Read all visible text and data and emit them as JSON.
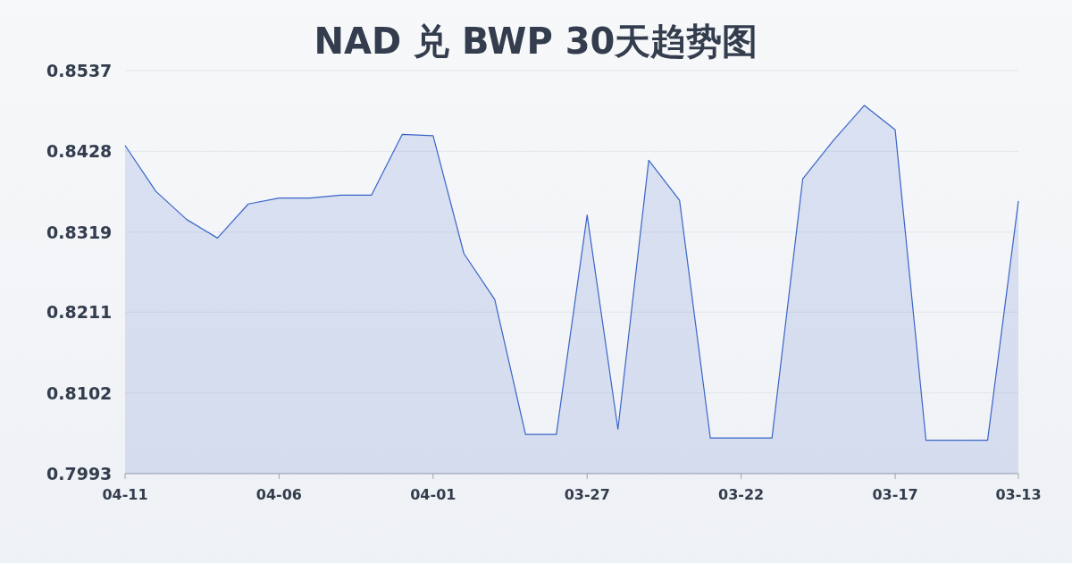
{
  "chart_data": {
    "type": "area",
    "title": "NAD 兑 BWP 30天趋势图",
    "categories": [
      "04-11",
      null,
      null,
      null,
      null,
      "04-06",
      null,
      null,
      null,
      null,
      "04-01",
      null,
      null,
      null,
      null,
      "03-27",
      null,
      null,
      null,
      null,
      "03-22",
      null,
      null,
      null,
      null,
      "03-17",
      null,
      null,
      null,
      "03-13"
    ],
    "values": [
      0.8436,
      0.8374,
      0.8336,
      0.8311,
      0.8357,
      0.8365,
      0.8365,
      0.8369,
      0.8369,
      0.8451,
      0.8449,
      0.829,
      0.8228,
      0.8046,
      0.8046,
      0.8342,
      0.8053,
      0.8416,
      0.8362,
      0.8041,
      0.8041,
      0.8041,
      0.8391,
      0.8443,
      0.849,
      0.8457,
      0.8038,
      0.8038,
      0.8038,
      0.8361
    ],
    "color": "#3a64c8",
    "ylim": [
      0.7993,
      0.8537
    ],
    "yticks": [
      0.7993,
      0.8102,
      0.8211,
      0.8319,
      0.8428,
      0.8537
    ],
    "grid": "y"
  }
}
